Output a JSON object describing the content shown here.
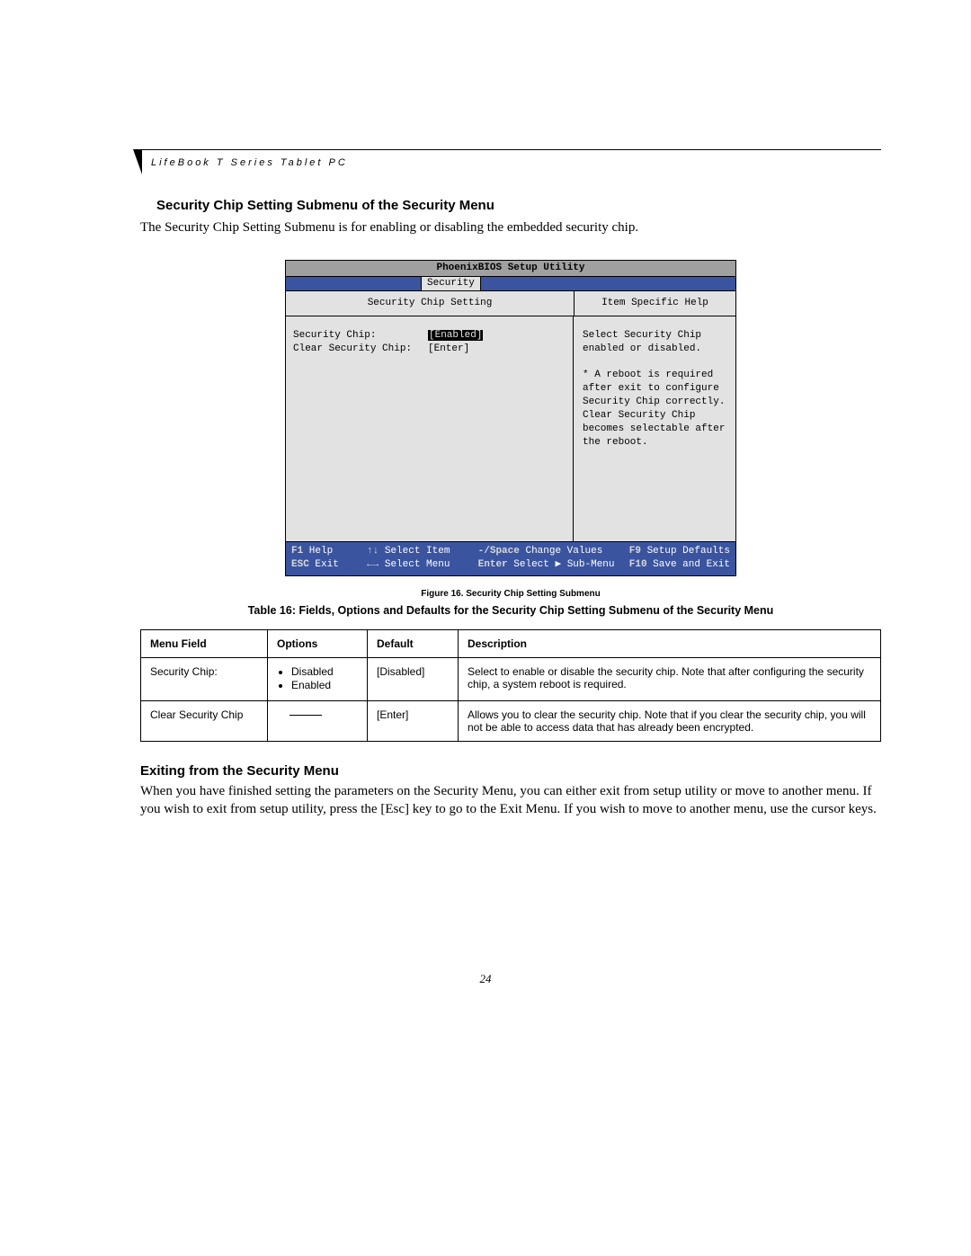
{
  "header_label": "LifeBook T Series Tablet PC",
  "section_title": "Security Chip Setting Submenu of the Security Menu",
  "intro_text": "The Security Chip Setting Submenu is for enabling or disabling the embedded security chip.",
  "bios": {
    "title": "PhoenixBIOS Setup Utility",
    "tab": "Security",
    "left_heading": "Security Chip Setting",
    "right_heading": "Item Specific Help",
    "rows": [
      {
        "label": "Security Chip:",
        "value": "[Enabled]",
        "highlight": true
      },
      {
        "label": "Clear Security Chip:",
        "value": "[Enter]",
        "highlight": false
      }
    ],
    "help_text": "Select Security Chip enabled or disabled.\n\n* A reboot is required after exit to configure Security Chip correctly. Clear Security Chip becomes selectable after the reboot.",
    "footer": {
      "r1": [
        {
          "k": "F1",
          "t": "Help"
        },
        {
          "k": "↑↓",
          "t": "Select Item"
        },
        {
          "k": "-/Space",
          "t": "Change Values"
        },
        {
          "k": "F9",
          "t": "Setup Defaults"
        }
      ],
      "r2": [
        {
          "k": "ESC",
          "t": "Exit"
        },
        {
          "k": "←→",
          "t": "Select Menu"
        },
        {
          "k": "Enter",
          "t": "Select ▶ Sub-Menu"
        },
        {
          "k": "F10",
          "t": "Save and Exit"
        }
      ]
    }
  },
  "figure_caption": "Figure 16.  Security Chip Setting Submenu",
  "table_title": "Table 16: Fields, Options and Defaults for the Security Chip Setting Submenu of the Security Menu",
  "table": {
    "headers": [
      "Menu Field",
      "Options",
      "Default",
      "Description"
    ],
    "rows": [
      {
        "field": "Security Chip:",
        "options": [
          "Disabled",
          "Enabled"
        ],
        "default": "[Disabled]",
        "desc": "Select to enable or disable the security chip. Note that after configuring the security chip, a system reboot is required."
      },
      {
        "field": "Clear Security Chip",
        "options": null,
        "default": "[Enter]",
        "desc": "Allows you to clear the security chip. Note that if you clear the security chip, you will not be able to access data that has already been encrypted."
      }
    ]
  },
  "exit_title": "Exiting from the Security Menu",
  "exit_text": "When you have finished setting the parameters on the Security Menu, you can either exit from setup utility or move to another menu. If you wish to exit from setup utility, press the [Esc] key to go to the Exit Menu. If you wish to move to another menu, use the cursor keys.",
  "page_number": "24",
  "colors": {
    "bios_title_bg": "#a0a0a0",
    "bios_tab_bg": "#3a54a0",
    "bios_body_bg": "#e2e2e2"
  }
}
